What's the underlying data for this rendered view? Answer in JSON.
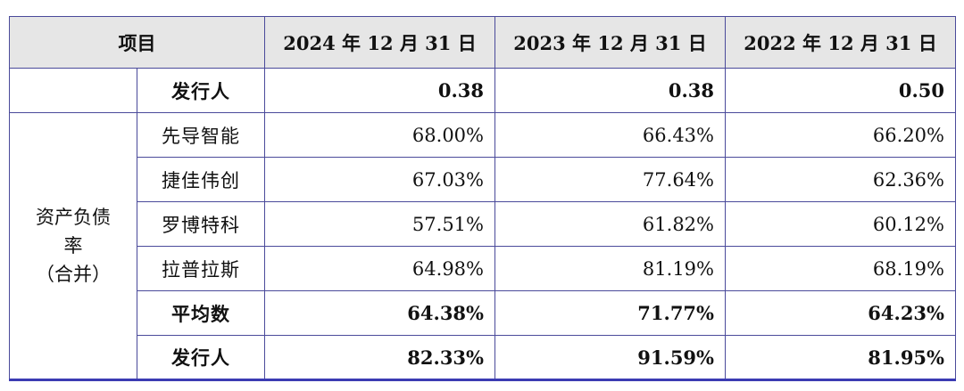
{
  "header": {
    "item": "项目",
    "col1": "2024 年 12 月 31 日",
    "col2": "2023 年 12 月 31 日",
    "col3": "2022 年 12 月 31 日"
  },
  "rows": [
    {
      "name": "发行人",
      "v1": "0.38",
      "v2": "0.38",
      "v3": "0.50"
    },
    {
      "name": "先导智能",
      "v1": "68.00%",
      "v2": "66.43%",
      "v3": "66.20%"
    },
    {
      "name": "捷佳伟创",
      "v1": "67.03%",
      "v2": "77.64%",
      "v3": "62.36%"
    },
    {
      "name": "罗博特科",
      "v1": "57.51%",
      "v2": "61.82%",
      "v3": "60.12%"
    },
    {
      "name": "拉普拉斯",
      "v1": "64.98%",
      "v2": "81.19%",
      "v3": "68.19%"
    },
    {
      "name": "平均数",
      "v1": "64.38%",
      "v2": "71.77%",
      "v3": "64.23%"
    },
    {
      "name": "发行人",
      "v1": "82.33%",
      "v2": "91.59%",
      "v3": "81.95%"
    }
  ],
  "group": {
    "line1": "资产负债",
    "line2": "率",
    "line3": "（合并）"
  }
}
